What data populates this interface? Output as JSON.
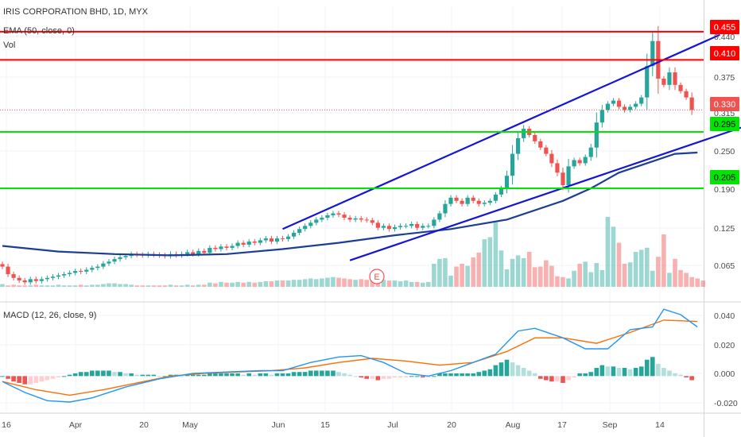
{
  "legend": {
    "symbol": "IRIS CORPORATION BHD, 1D, MYX",
    "ema": "EMA (50, close, 0)",
    "vol": "Vol",
    "macd": "MACD (12, 26, close, 9)"
  },
  "colors": {
    "up": "#26a69a",
    "down": "#ef5350",
    "ema": "#1c3f94",
    "trendline": "#1515d6",
    "resistance": "#ff0000",
    "support": "#00e600",
    "macd_line": "#2196f3",
    "signal_line": "#ff6d00"
  },
  "chart_data": [
    {
      "type": "candlestick",
      "title": "IRIS CORPORATION BHD, 1D, MYX",
      "ylim": [
        0.03,
        0.47
      ],
      "x_tick_labels": [
        "16",
        "Apr",
        "20",
        "May",
        "Jun",
        "15",
        "Jul",
        "20",
        "Aug",
        "17",
        "Sep",
        "14"
      ],
      "y_tick_labels": [
        "0.440",
        "0.375",
        "0.315",
        "0.250",
        "0.190",
        "0.125",
        "0.065"
      ],
      "closes": [
        0.08,
        0.068,
        0.062,
        0.058,
        0.055,
        0.06,
        0.057,
        0.06,
        0.062,
        0.064,
        0.066,
        0.068,
        0.07,
        0.073,
        0.072,
        0.075,
        0.078,
        0.08,
        0.085,
        0.088,
        0.092,
        0.095,
        0.097,
        0.1,
        0.099,
        0.098,
        0.1,
        0.099,
        0.098,
        0.097,
        0.1,
        0.098,
        0.1,
        0.103,
        0.1,
        0.105,
        0.102,
        0.11,
        0.108,
        0.112,
        0.11,
        0.113,
        0.118,
        0.115,
        0.12,
        0.118,
        0.122,
        0.125,
        0.12,
        0.125,
        0.124,
        0.128,
        0.134,
        0.14,
        0.145,
        0.15,
        0.155,
        0.158,
        0.162,
        0.165,
        0.163,
        0.158,
        0.155,
        0.157,
        0.155,
        0.154,
        0.15,
        0.142,
        0.145,
        0.14,
        0.143,
        0.145,
        0.145,
        0.148,
        0.142,
        0.145,
        0.145,
        0.155,
        0.165,
        0.18,
        0.19,
        0.185,
        0.18,
        0.19,
        0.185,
        0.18,
        0.182,
        0.185,
        0.195,
        0.205,
        0.225,
        0.26,
        0.285,
        0.3,
        0.29,
        0.28,
        0.27,
        0.26,
        0.245,
        0.23,
        0.21,
        0.24,
        0.25,
        0.245,
        0.255,
        0.27,
        0.31,
        0.33,
        0.34,
        0.345,
        0.335,
        0.33,
        0.335,
        0.34,
        0.35,
        0.4,
        0.44,
        0.38,
        0.37,
        0.39,
        0.37,
        0.36,
        0.35,
        0.33
      ],
      "volumes": [
        0.04,
        0.02,
        0.03,
        0.02,
        0.02,
        0.02,
        0.03,
        0.02,
        0.02,
        0.02,
        0.03,
        0.02,
        0.02,
        0.02,
        0.03,
        0.02,
        0.03,
        0.03,
        0.04,
        0.05,
        0.05,
        0.04,
        0.04,
        0.03,
        0.02,
        0.02,
        0.02,
        0.02,
        0.02,
        0.02,
        0.03,
        0.02,
        0.02,
        0.03,
        0.02,
        0.03,
        0.03,
        0.06,
        0.05,
        0.07,
        0.06,
        0.06,
        0.07,
        0.06,
        0.07,
        0.06,
        0.07,
        0.08,
        0.08,
        0.09,
        0.09,
        0.09,
        0.1,
        0.1,
        0.11,
        0.12,
        0.11,
        0.12,
        0.13,
        0.14,
        0.13,
        0.12,
        0.11,
        0.1,
        0.11,
        0.1,
        0.12,
        0.11,
        0.1,
        0.09,
        0.09,
        0.08,
        0.09,
        0.07,
        0.07,
        0.06,
        0.07,
        0.33,
        0.4,
        0.41,
        0.16,
        0.29,
        0.33,
        0.3,
        0.42,
        0.49,
        0.68,
        0.71,
        0.92,
        0.52,
        0.25,
        0.4,
        0.45,
        0.41,
        0.5,
        0.28,
        0.29,
        0.38,
        0.3,
        0.15,
        0.14,
        0.12,
        0.23,
        0.33,
        0.36,
        0.21,
        0.34,
        0.24,
        1.0,
        0.86,
        0.63,
        0.33,
        0.35,
        0.5,
        0.53,
        0.56,
        0.23,
        0.43,
        0.75,
        0.2,
        0.4,
        0.24,
        0.2,
        0.14,
        0.12,
        0.09
      ],
      "ema": [
        {
          "x": 0,
          "y": 0.113
        },
        {
          "x": 10,
          "y": 0.104
        },
        {
          "x": 20,
          "y": 0.1
        },
        {
          "x": 30,
          "y": 0.098
        },
        {
          "x": 40,
          "y": 0.1
        },
        {
          "x": 50,
          "y": 0.108
        },
        {
          "x": 60,
          "y": 0.118
        },
        {
          "x": 70,
          "y": 0.13
        },
        {
          "x": 80,
          "y": 0.14
        },
        {
          "x": 90,
          "y": 0.155
        },
        {
          "x": 100,
          "y": 0.185
        },
        {
          "x": 105,
          "y": 0.205
        },
        {
          "x": 110,
          "y": 0.23
        },
        {
          "x": 115,
          "y": 0.245
        },
        {
          "x": 120,
          "y": 0.26
        },
        {
          "x": 124,
          "y": 0.262
        }
      ],
      "price_labels": [
        {
          "label": "0.455",
          "kind": "resistance"
        },
        {
          "label": "0.410",
          "kind": "resistance"
        },
        {
          "label": "0.330",
          "kind": "last"
        },
        {
          "label": "0.295",
          "kind": "support"
        },
        {
          "label": "0.205",
          "kind": "support"
        }
      ],
      "lines": [
        {
          "kind": "resistance",
          "y": 0.455
        },
        {
          "kind": "resistance",
          "y": 0.41
        },
        {
          "kind": "last_price",
          "y": 0.33
        },
        {
          "kind": "support",
          "y": 0.295
        },
        {
          "kind": "support",
          "y": 0.205
        }
      ],
      "trendlines": [
        {
          "x1": 50,
          "y1": 0.14,
          "x2": 128,
          "y2": 0.45
        },
        {
          "x1": 62,
          "y1": 0.09,
          "x2": 146,
          "y2": 0.345
        }
      ],
      "earnings_marker": "E"
    },
    {
      "type": "macd",
      "title": "MACD (12, 26, close, 9)",
      "ylim": [
        -0.026,
        0.052
      ],
      "y_tick_labels": [
        "0.040",
        "0.020",
        "0.000",
        "-0.020"
      ],
      "macd": [
        {
          "x": 0,
          "y": -0.004
        },
        {
          "x": 4,
          "y": -0.012
        },
        {
          "x": 8,
          "y": -0.018
        },
        {
          "x": 12,
          "y": -0.019
        },
        {
          "x": 16,
          "y": -0.016
        },
        {
          "x": 22,
          "y": -0.008
        },
        {
          "x": 28,
          "y": -0.002
        },
        {
          "x": 34,
          "y": 0.002
        },
        {
          "x": 40,
          "y": 0.003
        },
        {
          "x": 46,
          "y": 0.004
        },
        {
          "x": 50,
          "y": 0.004
        },
        {
          "x": 55,
          "y": 0.01
        },
        {
          "x": 60,
          "y": 0.014
        },
        {
          "x": 64,
          "y": 0.015
        },
        {
          "x": 68,
          "y": 0.01
        },
        {
          "x": 72,
          "y": 0.002
        },
        {
          "x": 76,
          "y": 0.0
        },
        {
          "x": 80,
          "y": 0.004
        },
        {
          "x": 84,
          "y": 0.01
        },
        {
          "x": 88,
          "y": 0.016
        },
        {
          "x": 92,
          "y": 0.033
        },
        {
          "x": 95,
          "y": 0.035
        },
        {
          "x": 100,
          "y": 0.028
        },
        {
          "x": 104,
          "y": 0.02
        },
        {
          "x": 108,
          "y": 0.02
        },
        {
          "x": 112,
          "y": 0.034
        },
        {
          "x": 116,
          "y": 0.036
        },
        {
          "x": 118,
          "y": 0.049
        },
        {
          "x": 121,
          "y": 0.045
        },
        {
          "x": 124,
          "y": 0.036
        }
      ],
      "signal": [
        {
          "x": 0,
          "y": -0.004
        },
        {
          "x": 6,
          "y": -0.01
        },
        {
          "x": 12,
          "y": -0.014
        },
        {
          "x": 18,
          "y": -0.01
        },
        {
          "x": 24,
          "y": -0.005
        },
        {
          "x": 30,
          "y": 0.0
        },
        {
          "x": 36,
          "y": 0.002
        },
        {
          "x": 42,
          "y": 0.003
        },
        {
          "x": 48,
          "y": 0.004
        },
        {
          "x": 54,
          "y": 0.006
        },
        {
          "x": 60,
          "y": 0.01
        },
        {
          "x": 66,
          "y": 0.013
        },
        {
          "x": 72,
          "y": 0.011
        },
        {
          "x": 78,
          "y": 0.008
        },
        {
          "x": 84,
          "y": 0.01
        },
        {
          "x": 90,
          "y": 0.018
        },
        {
          "x": 95,
          "y": 0.028
        },
        {
          "x": 100,
          "y": 0.028
        },
        {
          "x": 106,
          "y": 0.024
        },
        {
          "x": 112,
          "y": 0.032
        },
        {
          "x": 118,
          "y": 0.041
        },
        {
          "x": 124,
          "y": 0.04
        }
      ],
      "histogram": [
        0.0,
        -0.002,
        -0.004,
        -0.005,
        -0.006,
        -0.006,
        -0.005,
        -0.004,
        -0.003,
        -0.002,
        -0.001,
        0.0,
        0.001,
        0.002,
        0.003,
        0.003,
        0.004,
        0.004,
        0.004,
        0.004,
        0.003,
        0.003,
        0.002,
        0.002,
        0.001,
        0.001,
        0.001,
        0.001,
        0.0,
        0.0,
        0.001,
        0.001,
        0.0,
        0.001,
        0.001,
        0.001,
        0.001,
        0.002,
        0.002,
        0.002,
        0.002,
        0.002,
        0.002,
        0.001,
        0.002,
        0.001,
        0.002,
        0.002,
        0.001,
        0.002,
        0.002,
        0.002,
        0.003,
        0.003,
        0.003,
        0.004,
        0.004,
        0.004,
        0.004,
        0.004,
        0.003,
        0.002,
        0.001,
        0.0,
        -0.001,
        -0.002,
        -0.002,
        -0.003,
        -0.002,
        -0.002,
        -0.001,
        -0.001,
        -0.001,
        0.0,
        0.0,
        -0.001,
        -0.001,
        0.0,
        0.002,
        0.002,
        0.002,
        0.002,
        0.002,
        0.002,
        0.002,
        0.003,
        0.004,
        0.005,
        0.008,
        0.01,
        0.012,
        0.01,
        0.008,
        0.006,
        0.004,
        0.002,
        -0.002,
        -0.003,
        -0.004,
        -0.004,
        -0.005,
        -0.003,
        -0.001,
        0.002,
        0.002,
        0.003,
        0.006,
        0.008,
        0.007,
        0.007,
        0.006,
        0.006,
        0.005,
        0.006,
        0.007,
        0.012,
        0.014,
        0.009,
        0.006,
        0.004,
        0.002,
        0.001,
        -0.001,
        -0.003
      ]
    }
  ]
}
